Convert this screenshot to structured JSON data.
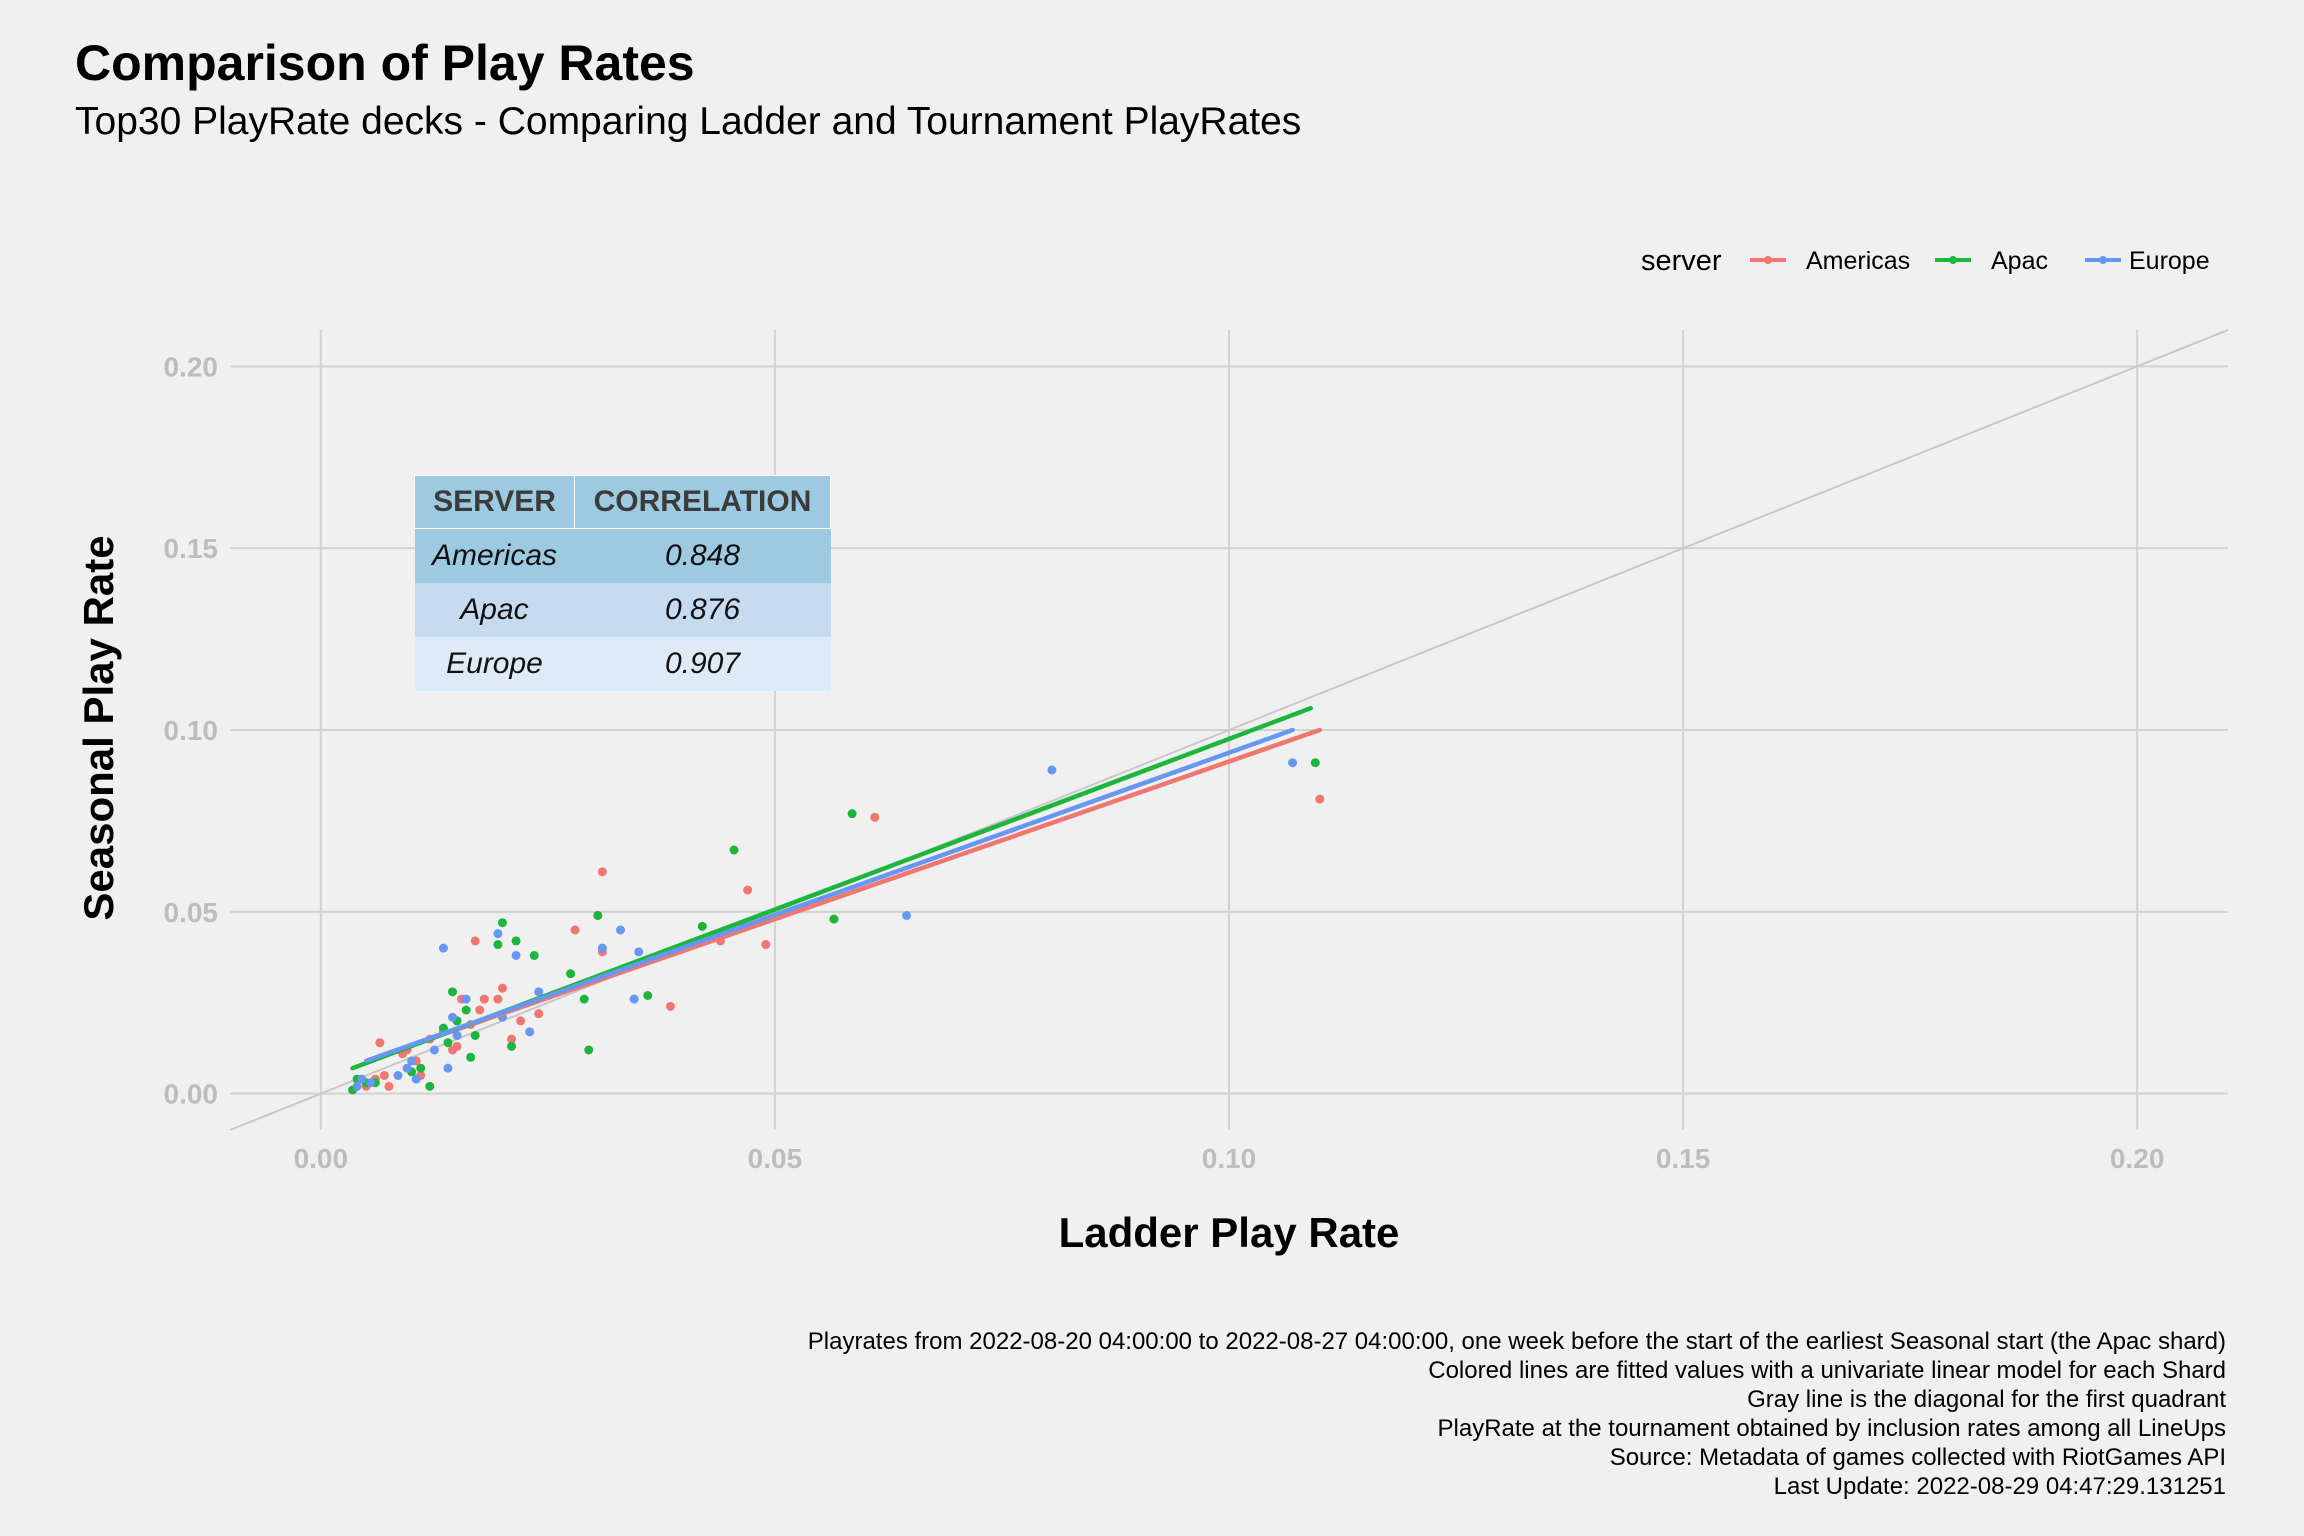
{
  "title": "Comparison of Play Rates",
  "subtitle": "Top30 PlayRate decks - Comparing Ladder and Tournament PlayRates",
  "legend": {
    "title": "server",
    "entries": [
      {
        "name": "Americas",
        "color": "#f07670"
      },
      {
        "name": "Apac",
        "color": "#1bb63b"
      },
      {
        "name": "Europe",
        "color": "#6897f2"
      }
    ]
  },
  "table": {
    "headers": [
      "SERVER",
      "CORRELATION"
    ],
    "rows": [
      {
        "server": "Americas",
        "correlation": "0.848"
      },
      {
        "server": "Apac",
        "correlation": "0.876"
      },
      {
        "server": "Europe",
        "correlation": "0.907"
      }
    ]
  },
  "caption": [
    "Playrates from 2022-08-20 04:00:00 to 2022-08-27 04:00:00, one week before the start of the earliest Seasonal start (the Apac shard)",
    "Colored lines are fitted values with a univariate linear model for each Shard",
    "Gray line is the diagonal for the first quadrant",
    "PlayRate at the tournament obtained by inclusion rates among all LineUps",
    "Source: Metadata of games collected with RiotGames API",
    "Last Update: 2022-08-29 04:47:29.131251"
  ],
  "chart_data": {
    "type": "scatter",
    "xlabel": "Ladder Play Rate",
    "ylabel": "Seasonal Play Rate",
    "xlim": [
      -0.01,
      0.21
    ],
    "ylim": [
      -0.01,
      0.21
    ],
    "x_ticks": [
      "0.00",
      "0.05",
      "0.10",
      "0.15",
      "0.20"
    ],
    "y_ticks": [
      "0.00",
      "0.05",
      "0.10",
      "0.15",
      "0.20"
    ],
    "tick_values": [
      0,
      0.05,
      0.1,
      0.15,
      0.2
    ],
    "grid": true,
    "legend_position": "top-right",
    "diagonal": {
      "from": [
        -0.01,
        -0.01
      ],
      "to": [
        0.21,
        0.21
      ],
      "color": "#c8c8c8"
    },
    "series": [
      {
        "name": "Americas",
        "color": "#f07670",
        "points": [
          [
            0.005,
            0.002
          ],
          [
            0.006,
            0.004
          ],
          [
            0.0065,
            0.014
          ],
          [
            0.007,
            0.005
          ],
          [
            0.0075,
            0.002
          ],
          [
            0.009,
            0.011
          ],
          [
            0.0095,
            0.012
          ],
          [
            0.0105,
            0.009
          ],
          [
            0.011,
            0.005
          ],
          [
            0.012,
            0.015
          ],
          [
            0.0135,
            0.017
          ],
          [
            0.0145,
            0.012
          ],
          [
            0.015,
            0.013
          ],
          [
            0.0155,
            0.026
          ],
          [
            0.0165,
            0.019
          ],
          [
            0.017,
            0.042
          ],
          [
            0.0175,
            0.023
          ],
          [
            0.018,
            0.026
          ],
          [
            0.0195,
            0.026
          ],
          [
            0.02,
            0.029
          ],
          [
            0.021,
            0.015
          ],
          [
            0.022,
            0.02
          ],
          [
            0.024,
            0.022
          ],
          [
            0.028,
            0.045
          ],
          [
            0.0305,
            0.049
          ],
          [
            0.031,
            0.061
          ],
          [
            0.031,
            0.039
          ],
          [
            0.0385,
            0.024
          ],
          [
            0.044,
            0.042
          ],
          [
            0.047,
            0.056
          ],
          [
            0.049,
            0.041
          ],
          [
            0.061,
            0.076
          ],
          [
            0.11,
            0.081
          ]
        ],
        "fit": [
          [
            0.005,
            0.009
          ],
          [
            0.11,
            0.1
          ]
        ]
      },
      {
        "name": "Apac",
        "color": "#1bb63b",
        "points": [
          [
            0.0035,
            0.001
          ],
          [
            0.004,
            0.004
          ],
          [
            0.005,
            0.003
          ],
          [
            0.006,
            0.003
          ],
          [
            0.01,
            0.006
          ],
          [
            0.011,
            0.007
          ],
          [
            0.012,
            0.002
          ],
          [
            0.0135,
            0.018
          ],
          [
            0.014,
            0.014
          ],
          [
            0.0145,
            0.028
          ],
          [
            0.015,
            0.02
          ],
          [
            0.016,
            0.023
          ],
          [
            0.0165,
            0.01
          ],
          [
            0.017,
            0.016
          ],
          [
            0.0195,
            0.041
          ],
          [
            0.02,
            0.047
          ],
          [
            0.021,
            0.013
          ],
          [
            0.0215,
            0.042
          ],
          [
            0.0235,
            0.038
          ],
          [
            0.0275,
            0.033
          ],
          [
            0.029,
            0.026
          ],
          [
            0.0295,
            0.012
          ],
          [
            0.0305,
            0.049
          ],
          [
            0.036,
            0.027
          ],
          [
            0.042,
            0.046
          ],
          [
            0.0455,
            0.067
          ],
          [
            0.0565,
            0.048
          ],
          [
            0.0585,
            0.077
          ],
          [
            0.1095,
            0.091
          ]
        ],
        "fit": [
          [
            0.0035,
            0.007
          ],
          [
            0.109,
            0.106
          ]
        ]
      },
      {
        "name": "Europe",
        "color": "#6897f2",
        "points": [
          [
            0.004,
            0.002
          ],
          [
            0.0045,
            0.004
          ],
          [
            0.0055,
            0.003
          ],
          [
            0.0085,
            0.005
          ],
          [
            0.0095,
            0.007
          ],
          [
            0.01,
            0.009
          ],
          [
            0.0105,
            0.004
          ],
          [
            0.0125,
            0.012
          ],
          [
            0.0135,
            0.04
          ],
          [
            0.014,
            0.007
          ],
          [
            0.0145,
            0.021
          ],
          [
            0.015,
            0.016
          ],
          [
            0.016,
            0.026
          ],
          [
            0.0195,
            0.044
          ],
          [
            0.02,
            0.021
          ],
          [
            0.0215,
            0.038
          ],
          [
            0.023,
            0.017
          ],
          [
            0.024,
            0.028
          ],
          [
            0.031,
            0.04
          ],
          [
            0.033,
            0.045
          ],
          [
            0.0345,
            0.026
          ],
          [
            0.035,
            0.039
          ],
          [
            0.0505,
            0.049
          ],
          [
            0.0645,
            0.049
          ],
          [
            0.0805,
            0.089
          ],
          [
            0.107,
            0.091
          ]
        ],
        "fit": [
          [
            0.005,
            0.009
          ],
          [
            0.107,
            0.1
          ]
        ]
      }
    ]
  }
}
